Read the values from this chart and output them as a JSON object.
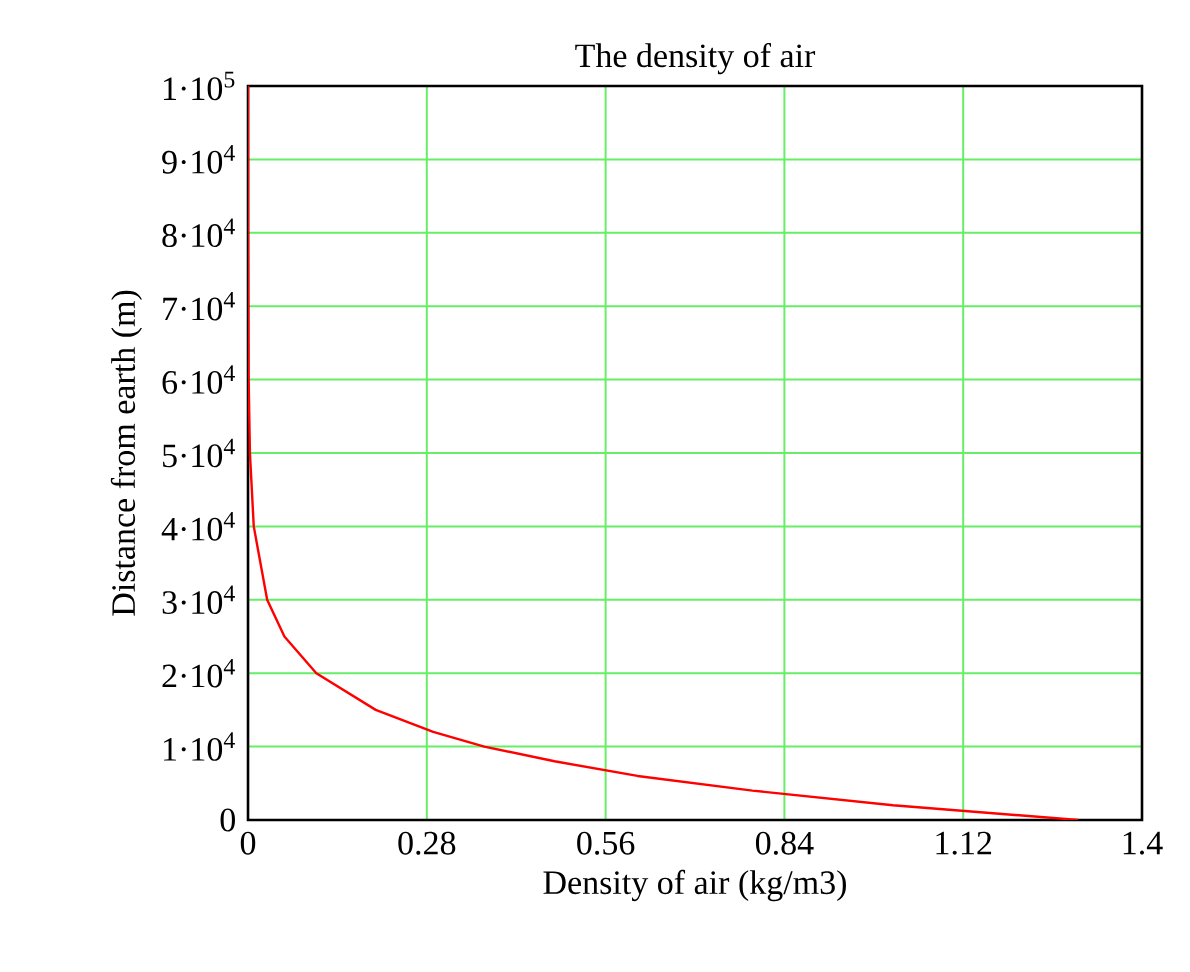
{
  "chart_data": {
    "type": "line",
    "title": "The density of air",
    "xlabel": "Density of air (kg/m3)",
    "ylabel": "Distance from earth (m)",
    "x": [
      1.3,
      1.01,
      0.79,
      0.61,
      0.48,
      0.37,
      0.29,
      0.2,
      0.107,
      0.057,
      0.03,
      0.009,
      0.003,
      0.001,
      0.0001,
      0
    ],
    "values": [
      0,
      2000,
      4000,
      6000,
      8000,
      10000,
      12000,
      15000,
      20000,
      25000,
      30000,
      40000,
      50000,
      60000,
      80000,
      100000
    ],
    "color": "#ff0000",
    "xlim": [
      0,
      1.4
    ],
    "xticks": [
      0,
      0.28,
      0.56,
      0.84,
      1.12,
      1.4
    ],
    "ylim": [
      0,
      100000
    ],
    "yticks": [
      0,
      {
        "value": 10000,
        "label": "1·10$^{4}$"
      },
      {
        "value": 20000,
        "label": "2·10$^{4}$"
      },
      {
        "value": 30000,
        "label": "3·10$^{4}$"
      },
      {
        "value": 40000,
        "label": "4·10$^{4}$"
      },
      {
        "value": 50000,
        "label": "5·10$^{4}$"
      },
      {
        "value": 60000,
        "label": "6·10$^{4}$"
      },
      {
        "value": 70000,
        "label": "7·10$^{4}$"
      },
      {
        "value": 80000,
        "label": "8·10$^{4}$"
      },
      {
        "value": 90000,
        "label": "9·10$^{4}$"
      },
      {
        "value": 100000,
        "label": "1·10$^{5}$"
      }
    ],
    "grid": true,
    "marker": "none",
    "line_style": "solid"
  }
}
